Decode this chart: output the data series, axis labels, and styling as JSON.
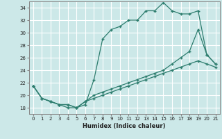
{
  "xlabel": "Humidex (Indice chaleur)",
  "background_color": "#cce8e8",
  "grid_color": "#ffffff",
  "line_color": "#2d7d6e",
  "xlim": [
    -0.5,
    21.5
  ],
  "ylim": [
    17,
    35
  ],
  "xticks": [
    0,
    1,
    2,
    3,
    4,
    5,
    6,
    7,
    8,
    9,
    10,
    11,
    12,
    13,
    14,
    15,
    16,
    17,
    18,
    19,
    20,
    21
  ],
  "yticks": [
    18,
    20,
    22,
    24,
    26,
    28,
    30,
    32,
    34
  ],
  "line1_x": [
    0,
    1,
    2,
    3,
    4,
    5,
    6,
    7,
    8,
    9,
    10,
    11,
    12,
    13,
    14,
    15,
    16,
    17,
    18,
    19,
    20,
    21
  ],
  "line1_y": [
    21.5,
    19.5,
    19.0,
    18.5,
    18.0,
    18.0,
    18.5,
    22.5,
    29.0,
    30.5,
    31.0,
    32.0,
    32.0,
    33.5,
    33.5,
    34.8,
    33.5,
    33.0,
    33.0,
    33.5,
    26.5,
    25.0
  ],
  "line2_x": [
    0,
    1,
    2,
    3,
    4,
    5,
    6,
    7,
    8,
    9,
    10,
    11,
    12,
    13,
    14,
    15,
    16,
    17,
    18,
    19,
    20,
    21
  ],
  "line2_y": [
    21.5,
    19.5,
    19.0,
    18.5,
    18.5,
    18.0,
    19.0,
    20.0,
    20.5,
    21.0,
    21.5,
    22.0,
    22.5,
    23.0,
    23.5,
    24.0,
    25.0,
    26.0,
    27.0,
    30.5,
    26.5,
    25.0
  ],
  "line3_x": [
    0,
    1,
    2,
    3,
    4,
    5,
    6,
    7,
    8,
    9,
    10,
    11,
    12,
    13,
    14,
    15,
    16,
    17,
    18,
    19,
    20,
    21
  ],
  "line3_y": [
    21.5,
    19.5,
    19.0,
    18.5,
    18.5,
    18.0,
    19.0,
    19.5,
    20.0,
    20.5,
    21.0,
    21.5,
    22.0,
    22.5,
    23.0,
    23.5,
    24.0,
    24.5,
    25.0,
    25.5,
    25.0,
    24.5
  ]
}
